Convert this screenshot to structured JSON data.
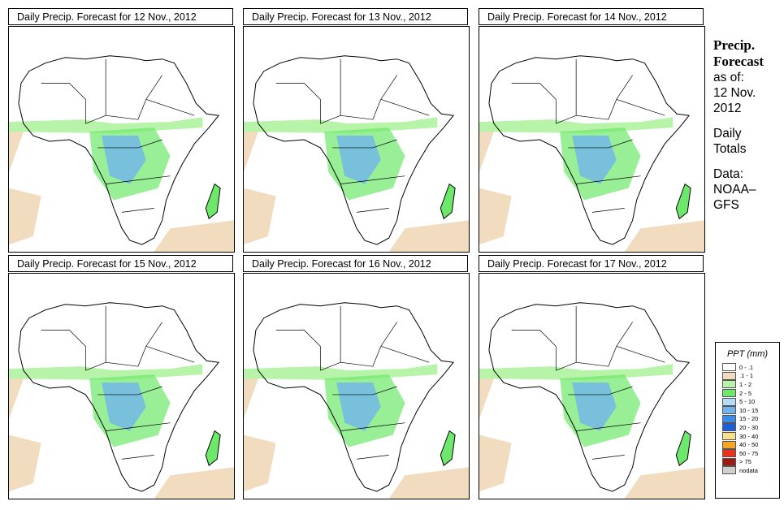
{
  "panels": [
    {
      "title": "Daily Precip. Forecast for  12 Nov., 2012",
      "date": "12 Nov., 2012"
    },
    {
      "title": "Daily Precip. Forecast for  13 Nov., 2012",
      "date": "13 Nov., 2012"
    },
    {
      "title": "Daily Precip. Forecast for  14 Nov., 2012",
      "date": "14 Nov., 2012"
    },
    {
      "title": "Daily Precip. Forecast for  15 Nov., 2012",
      "date": "15 Nov., 2012"
    },
    {
      "title": "Daily Precip. Forecast for  16 Nov., 2012",
      "date": "16 Nov., 2012"
    },
    {
      "title": "Daily Precip. Forecast for  17 Nov., 2012",
      "date": "17 Nov., 2012"
    }
  ],
  "side_info": {
    "title_line1": "Precip.",
    "title_line2": "Forecast",
    "asof_label": "as of:",
    "asof_date_line1": "12 Nov.",
    "asof_date_line2": "2012",
    "totals_line1": "Daily",
    "totals_line2": "Totals",
    "source_line1": "Data:",
    "source_line2": "NOAA–",
    "source_line3": "GFS"
  },
  "legend": {
    "title": "PPT (mm)",
    "items": [
      {
        "label": "0 - .1",
        "color": "#ffffff"
      },
      {
        "label": ".1 - 1",
        "color": "#f2dcc0"
      },
      {
        "label": "1 - 2",
        "color": "#b7f3a8"
      },
      {
        "label": "2 - 5",
        "color": "#6ee86a"
      },
      {
        "label": "5 - 10",
        "color": "#b4dcf5"
      },
      {
        "label": "10 - 15",
        "color": "#6fb4ee"
      },
      {
        "label": "15 - 20",
        "color": "#3b8de6"
      },
      {
        "label": "20 - 30",
        "color": "#1e5fd6"
      },
      {
        "label": "30 - 40",
        "color": "#f5e18a"
      },
      {
        "label": "40 - 50",
        "color": "#f5a623"
      },
      {
        "label": "50 - 75",
        "color": "#e8331c"
      },
      {
        "label": "> 75",
        "color": "#9b1a12"
      },
      {
        "label": "nodata",
        "color": "#cfcfcf"
      }
    ]
  }
}
